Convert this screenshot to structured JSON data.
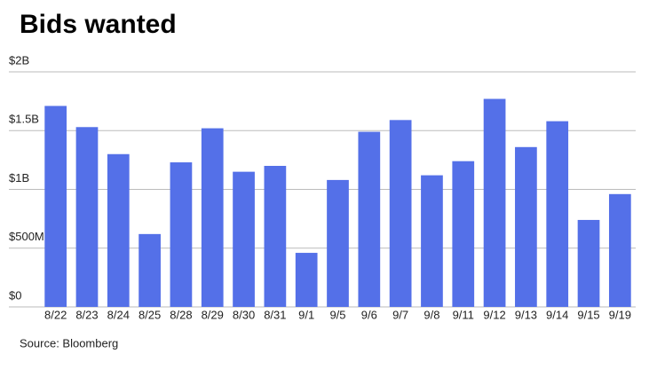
{
  "chart_data": {
    "type": "bar",
    "title": "Bids wanted",
    "source": "Source: Bloomberg",
    "categories": [
      "8/22",
      "8/23",
      "8/24",
      "8/25",
      "8/28",
      "8/29",
      "8/30",
      "8/31",
      "9/1",
      "9/5",
      "9/6",
      "9/7",
      "9/8",
      "9/11",
      "9/12",
      "9/13",
      "9/14",
      "9/15",
      "9/19"
    ],
    "values": [
      1.71,
      1.53,
      1.3,
      0.62,
      1.23,
      1.52,
      1.15,
      1.2,
      0.46,
      1.08,
      1.49,
      1.59,
      1.12,
      1.24,
      1.77,
      1.36,
      1.58,
      0.74,
      0.96
    ],
    "color": "#5470e8",
    "ylim": [
      0,
      2
    ],
    "yticks": [
      {
        "value": 0,
        "label": "$0"
      },
      {
        "value": 0.5,
        "label": "$500M"
      },
      {
        "value": 1,
        "label": "$1B"
      },
      {
        "value": 1.5,
        "label": "$1.5B"
      },
      {
        "value": 2,
        "label": "$2B"
      }
    ],
    "grid": true
  }
}
